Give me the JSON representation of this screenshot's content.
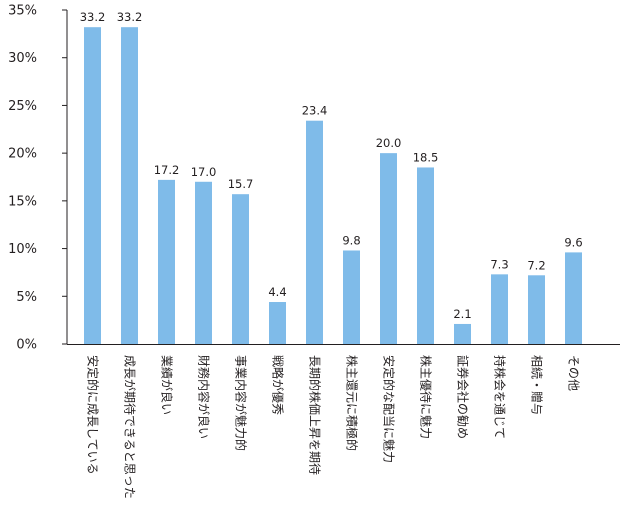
{
  "chart_data": {
    "type": "bar",
    "categories": [
      "安定的に成長している",
      "成長が期待できると思った",
      "業績が良い",
      "財務内容が良い",
      "事業内容が魅力的",
      "戦略が優秀",
      "長期的株価上昇を期待",
      "株主還元に積極的",
      "安定的な配当に魅力",
      "株主優待に魅力",
      "証券会社の勧め",
      "持株会を通じて",
      "相続・贈与",
      "その他"
    ],
    "values": [
      33.2,
      33.2,
      17.2,
      17.0,
      15.7,
      4.4,
      23.4,
      9.8,
      20.0,
      18.5,
      2.1,
      7.3,
      7.2,
      9.6
    ],
    "value_labels": [
      "33.2",
      "33.2",
      "17.2",
      "17.0",
      "15.7",
      "4.4",
      "23.4",
      "9.8",
      "20.0",
      "18.5",
      "2.1",
      "7.3",
      "7.2",
      "9.6"
    ],
    "yticks": [
      0,
      5,
      10,
      15,
      20,
      25,
      30,
      35
    ],
    "ytick_labels": [
      "0%",
      "5%",
      "10%",
      "15%",
      "20%",
      "25%",
      "30%",
      "35%"
    ],
    "ylim": [
      0,
      35
    ],
    "grid": false,
    "bar_color": "#7fbbe9",
    "axis_color": "#231f20"
  }
}
